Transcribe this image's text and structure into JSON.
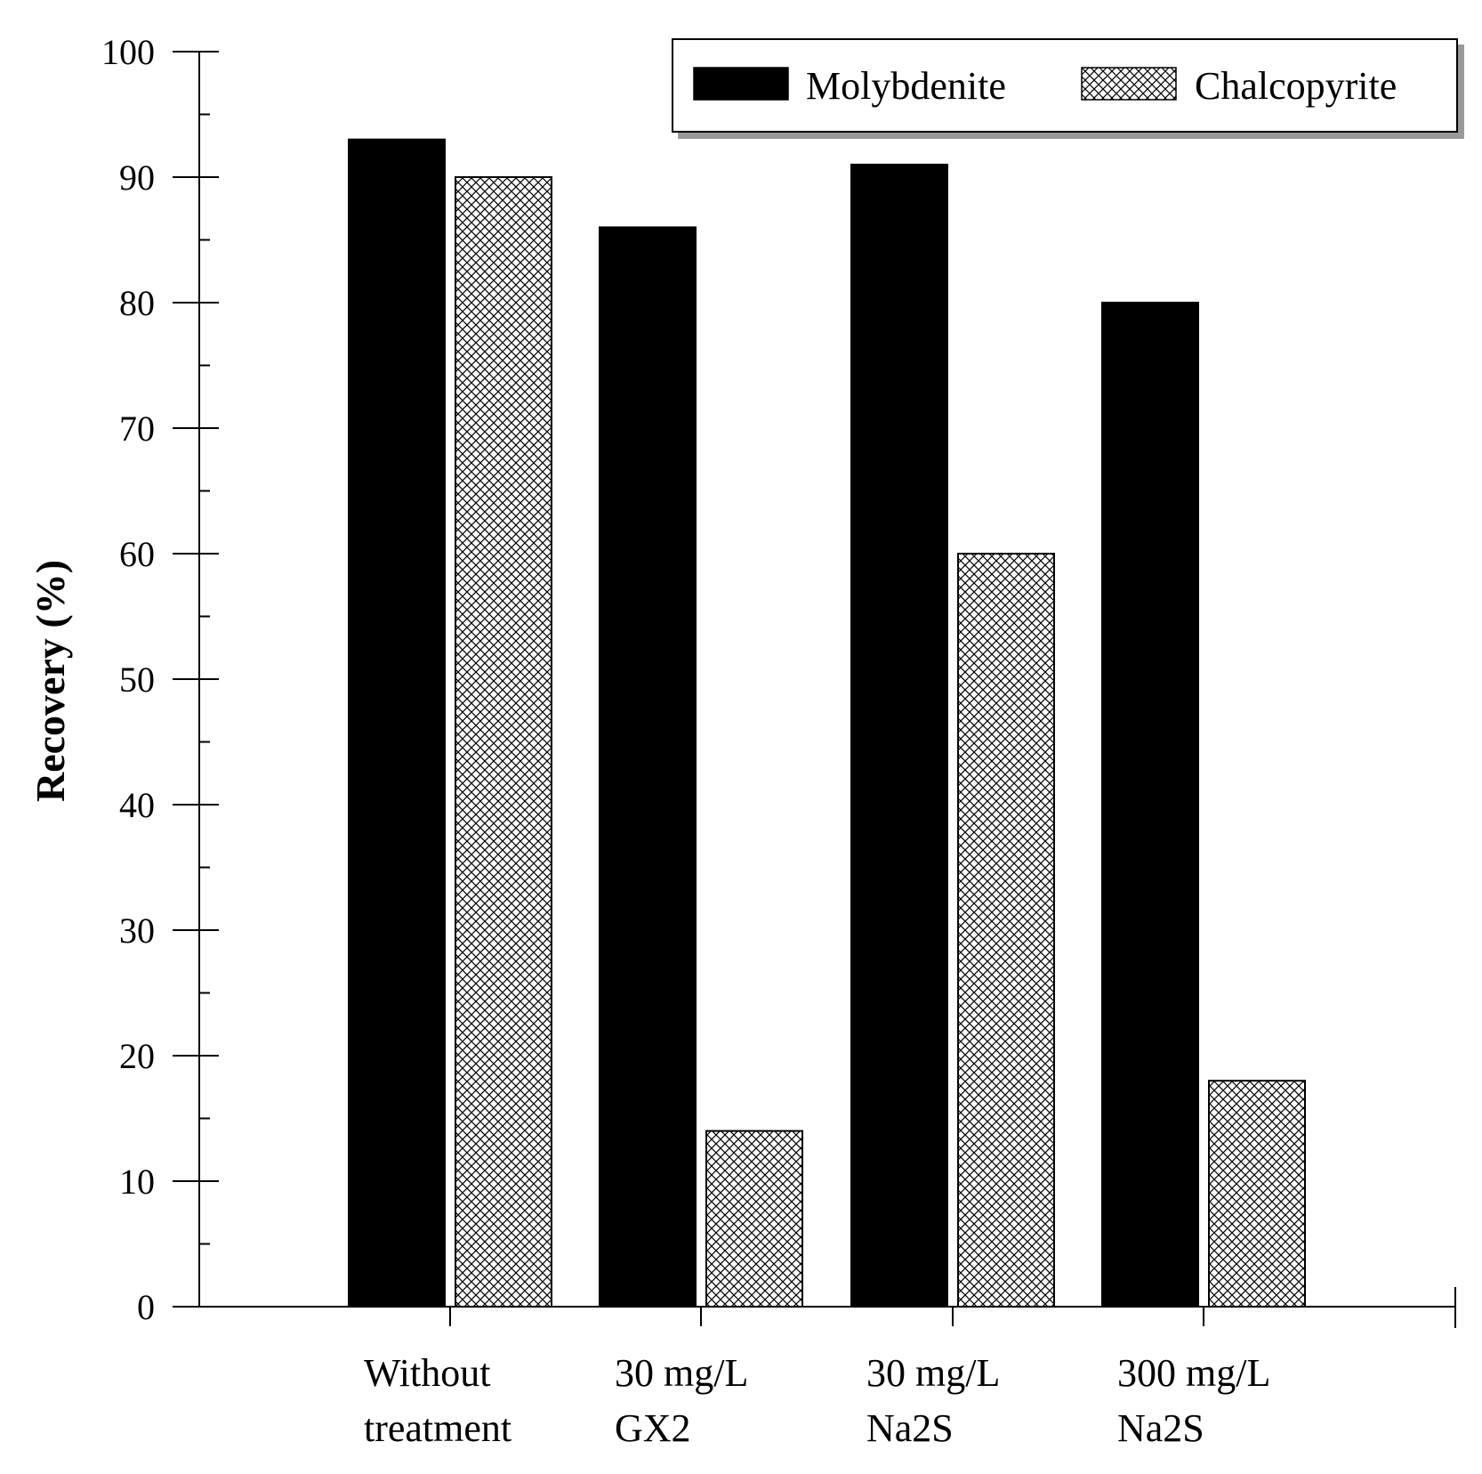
{
  "chart_data": {
    "type": "bar",
    "title": "",
    "xlabel": "",
    "ylabel": "Recovery (%)",
    "ylim": [
      0,
      100
    ],
    "yticks": [
      0,
      10,
      20,
      30,
      40,
      50,
      60,
      70,
      80,
      90,
      100
    ],
    "grid": false,
    "legend_position": "top-right",
    "categories": [
      [
        "Without",
        "treatment"
      ],
      [
        "30 mg/L",
        "GX2"
      ],
      [
        "30 mg/L",
        "Na2S"
      ],
      [
        "300 mg/L",
        "Na2S"
      ]
    ],
    "series": [
      {
        "name": "Molybdenite",
        "fill": "solid",
        "color": "#000000",
        "values": [
          93,
          86,
          91,
          80
        ]
      },
      {
        "name": "Chalcopyrite",
        "fill": "crosshatch",
        "color": "#000000",
        "values": [
          90,
          14,
          60,
          18
        ]
      }
    ]
  }
}
